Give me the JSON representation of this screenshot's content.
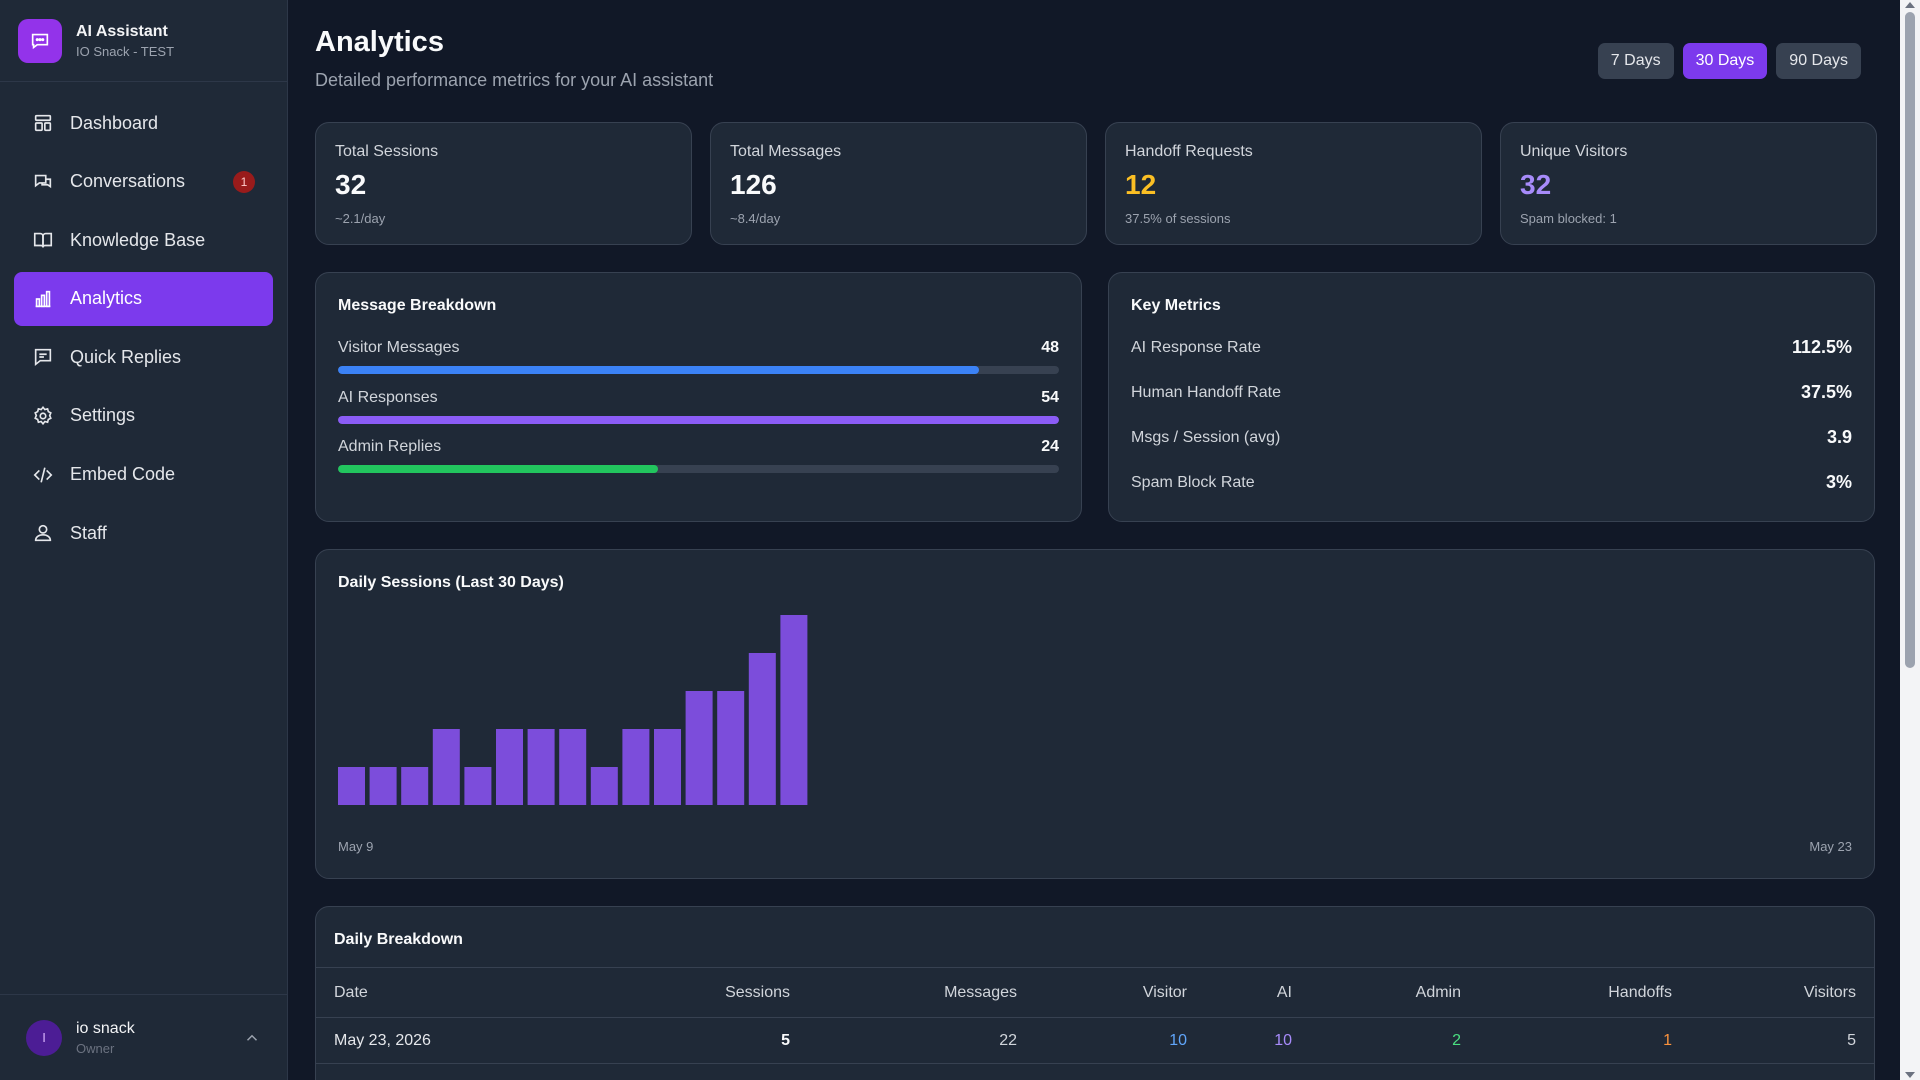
{
  "brand": {
    "title": "AI Assistant",
    "subtitle": "IO Snack - TEST"
  },
  "nav": [
    {
      "label": "Dashboard",
      "icon": "dashboard-icon"
    },
    {
      "label": "Conversations",
      "icon": "chat-bubbles-icon",
      "badge": "1"
    },
    {
      "label": "Knowledge Base",
      "icon": "book-icon"
    },
    {
      "label": "Analytics",
      "icon": "bar-chart-icon",
      "active": true
    },
    {
      "label": "Quick Replies",
      "icon": "message-square-icon"
    },
    {
      "label": "Settings",
      "icon": "gear-icon"
    },
    {
      "label": "Embed Code",
      "icon": "code-icon"
    },
    {
      "label": "Staff",
      "icon": "users-icon"
    }
  ],
  "user": {
    "initial": "I",
    "name": "io snack",
    "role": "Owner"
  },
  "header": {
    "title": "Analytics",
    "subtitle": "Detailed performance metrics for your AI assistant",
    "ranges": [
      "7 Days",
      "30 Days",
      "90 Days"
    ],
    "active_range": "30 Days"
  },
  "stats": [
    {
      "label": "Total Sessions",
      "value": "32",
      "note": "~2.1/day",
      "color": "#f9fafb"
    },
    {
      "label": "Total Messages",
      "value": "126",
      "note": "~8.4/day",
      "color": "#f9fafb"
    },
    {
      "label": "Handoff Requests",
      "value": "12",
      "note": "37.5% of sessions",
      "color": "#fbbf24"
    },
    {
      "label": "Unique Visitors",
      "value": "32",
      "note": "Spam blocked: 1",
      "color": "#a78bfa"
    }
  ],
  "breakdown": {
    "title": "Message Breakdown",
    "items": [
      {
        "label": "Visitor Messages",
        "value": "48",
        "fraction": 0.889,
        "color": "#3b82f6"
      },
      {
        "label": "AI Responses",
        "value": "54",
        "fraction": 1.0,
        "color": "#8b5cf6"
      },
      {
        "label": "Admin Replies",
        "value": "24",
        "fraction": 0.444,
        "color": "#22c55e"
      }
    ]
  },
  "key_metrics": {
    "title": "Key Metrics",
    "items": [
      {
        "label": "AI Response Rate",
        "value": "112.5%"
      },
      {
        "label": "Human Handoff Rate",
        "value": "37.5%"
      },
      {
        "label": "Msgs / Session (avg)",
        "value": "3.9"
      },
      {
        "label": "Spam Block Rate",
        "value": "3%"
      }
    ]
  },
  "daily_chart": {
    "title": "Daily Sessions (Last 30 Days)",
    "start_label": "May 9",
    "end_label": "May 23"
  },
  "chart_data": {
    "type": "bar",
    "title": "Daily Sessions (Last 30 Days)",
    "x_start": "May 9",
    "x_end": "May 23",
    "values": [
      1,
      1,
      1,
      2,
      1,
      2,
      2,
      2,
      1,
      2,
      2,
      3,
      3,
      4,
      5
    ],
    "color": "#7c4ddb"
  },
  "table": {
    "title": "Daily Breakdown",
    "columns": [
      "Date",
      "Sessions",
      "Messages",
      "Visitor",
      "AI",
      "Admin",
      "Handoffs",
      "Visitors"
    ],
    "rows": [
      [
        "May 23, 2026",
        "5",
        "22",
        "10",
        "10",
        "2",
        "1",
        "5"
      ]
    ],
    "column_colors": [
      "#e5e7eb",
      "#f9fafb",
      "#d1d5db",
      "#60a5fa",
      "#a78bfa",
      "#4ade80",
      "#fb923c",
      "#d1d5db"
    ]
  }
}
